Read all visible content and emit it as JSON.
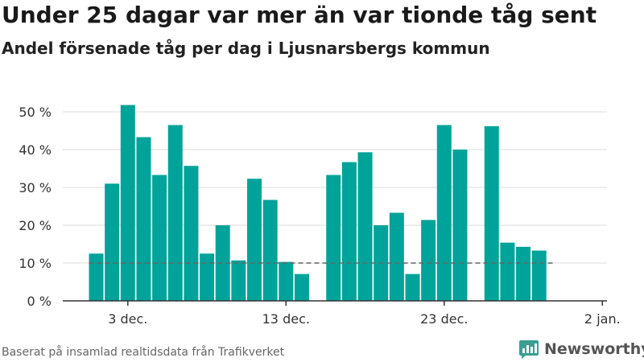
{
  "title": "Under 25 dagar var mer än var tionde tåg sent",
  "subtitle": "Andel försenade tåg per dag i Ljusnarsbergs kommun",
  "footer": "Baserat på insamlad realtidsdata från Trafikverket",
  "brand": "Newsworthy",
  "colors": {
    "bar": "#00a399",
    "grid": "#dddddd",
    "reference_line": "#666666",
    "axis": "#333333",
    "brand_icon": "#3b9e8f"
  },
  "chart_data": {
    "type": "bar",
    "title": "Under 25 dagar var mer än var tionde tåg sent",
    "subtitle": "Andel försenade tåg per dag i Ljusnarsbergs kommun",
    "xlabel": "",
    "ylabel": "",
    "x_start_date": "2023-12-01",
    "x_end_date": "2024-01-02",
    "x": [
      "2023-12-01",
      "2023-12-02",
      "2023-12-03",
      "2023-12-04",
      "2023-12-05",
      "2023-12-06",
      "2023-12-07",
      "2023-12-08",
      "2023-12-09",
      "2023-12-10",
      "2023-12-11",
      "2023-12-12",
      "2023-12-13",
      "2023-12-14",
      "2023-12-15",
      "2023-12-16",
      "2023-12-17",
      "2023-12-18",
      "2023-12-19",
      "2023-12-20",
      "2023-12-21",
      "2023-12-22",
      "2023-12-23",
      "2023-12-24",
      "2023-12-25",
      "2023-12-26",
      "2023-12-27",
      "2023-12-28",
      "2023-12-29",
      "2023-12-30",
      "2023-12-31",
      "2024-01-01"
    ],
    "values": [
      12.5,
      31,
      51.8,
      43.3,
      33.3,
      46.5,
      35.7,
      12.5,
      20,
      10.7,
      32.3,
      26.7,
      10.3,
      7.1,
      null,
      33.3,
      36.7,
      39.3,
      20,
      23.3,
      7.1,
      21.4,
      46.5,
      40,
      null,
      46.2,
      15.4,
      14.3,
      13.3,
      null,
      null,
      null
    ],
    "ylim": [
      0,
      52
    ],
    "y_ticks": [
      0,
      10,
      20,
      30,
      40,
      50
    ],
    "y_tick_labels": [
      "0 %",
      "10 %",
      "20 %",
      "30 %",
      "40 %",
      "50 %"
    ],
    "x_ticks": [
      "2023-12-03",
      "2023-12-13",
      "2023-12-23",
      "2024-01-02"
    ],
    "x_tick_labels": [
      "3 dec.",
      "13 dec.",
      "23 dec.",
      "2 jan."
    ],
    "reference_line": {
      "value": 10,
      "style": "dashed"
    },
    "grid": true,
    "legend": "none"
  }
}
